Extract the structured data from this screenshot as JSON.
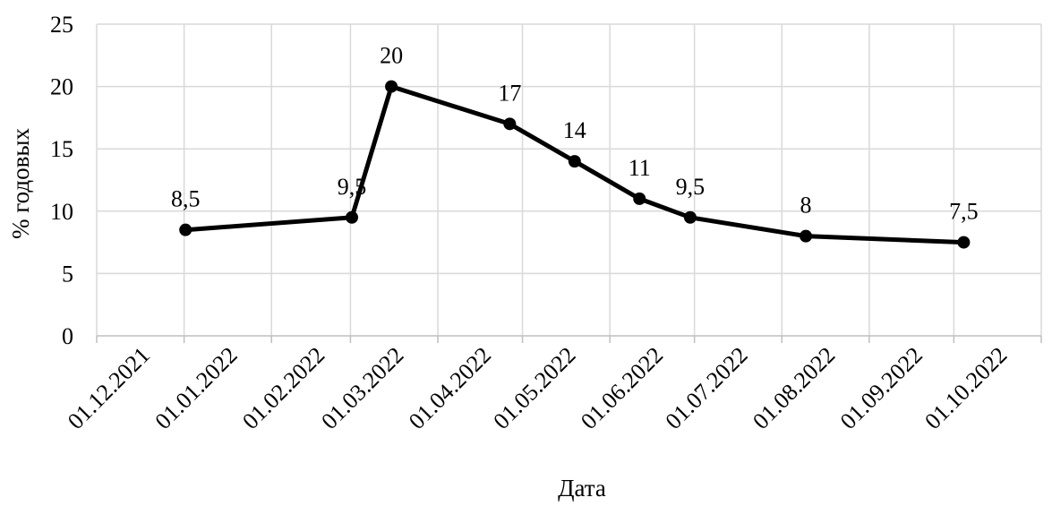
{
  "chart_data": {
    "type": "line",
    "title": "",
    "xlabel": "Дата",
    "ylabel": "% годовых",
    "ylim": [
      0,
      25
    ],
    "yticks": [
      0,
      5,
      10,
      15,
      20,
      25
    ],
    "grid": true,
    "legend": "none",
    "line_color": "#000000",
    "grid_color": "#d9d9d9",
    "categories": [
      "01.12.2021",
      "01.01.2022",
      "01.02.2022",
      "01.03.2022",
      "01.04.2022",
      "01.05.2022",
      "01.06.2022",
      "01.07.2022",
      "01.08.2022",
      "01.09.2022",
      "01.10.2022"
    ],
    "points": [
      {
        "x": "17.12.2021",
        "y": 8.5,
        "label": "8,5"
      },
      {
        "x": "14.02.2022",
        "y": 9.5,
        "label": "9,5"
      },
      {
        "x": "28.02.2022",
        "y": 20,
        "label": "20"
      },
      {
        "x": "11.04.2022",
        "y": 17,
        "label": "17"
      },
      {
        "x": "04.05.2022",
        "y": 14,
        "label": "14"
      },
      {
        "x": "27.05.2022",
        "y": 11,
        "label": "11"
      },
      {
        "x": "14.06.2022",
        "y": 9.5,
        "label": "9,5"
      },
      {
        "x": "25.07.2022",
        "y": 8,
        "label": "8"
      },
      {
        "x": "19.09.2022",
        "y": 7.5,
        "label": "7,5"
      }
    ]
  }
}
